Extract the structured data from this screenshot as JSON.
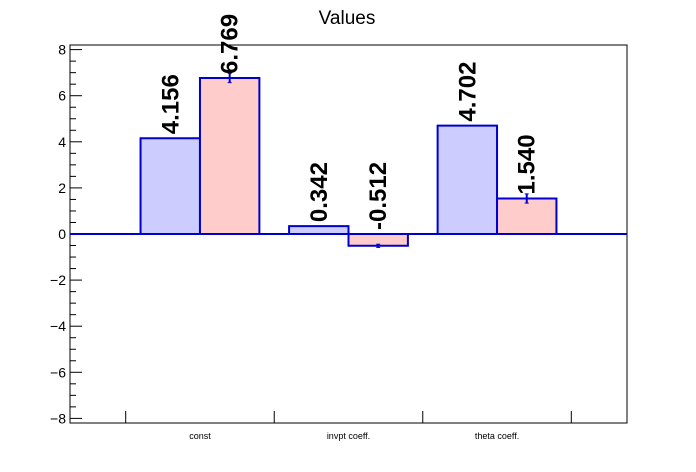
{
  "chart_data": {
    "type": "bar",
    "title": "Values",
    "xlabel": "",
    "ylabel": "",
    "categories": [
      "const",
      "invpt coeff.",
      "theta coeff."
    ],
    "ylim": [
      -8.2,
      8.2
    ],
    "yticks": [
      -8,
      -6,
      -4,
      -2,
      0,
      2,
      4,
      6,
      8
    ],
    "series": [
      {
        "values": [
          4.156,
          0.342,
          4.702
        ],
        "labels": [
          "4.156",
          "0.342",
          "4.702"
        ],
        "errors": [
          0,
          0,
          0
        ],
        "fill": "#ccccff",
        "stroke": "#0000cc"
      },
      {
        "values": [
          6.769,
          -0.512,
          1.54
        ],
        "labels": [
          "6.769",
          "-0.512",
          "1.540"
        ],
        "errors": [
          0.2,
          0.07,
          0.2
        ],
        "fill": "#ffcccc",
        "stroke": "#0000cc"
      }
    ],
    "grid": false,
    "legend": "none"
  },
  "colors": {
    "axis": "#000000",
    "zero_line": "#0000cc"
  }
}
